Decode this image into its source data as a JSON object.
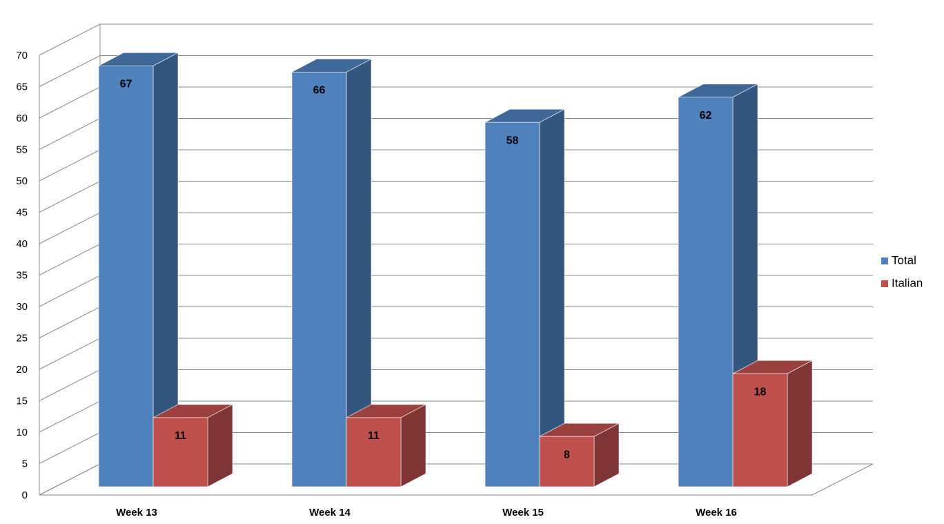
{
  "chart_data": {
    "type": "bar3d",
    "categories": [
      "Week 13",
      "Week 14",
      "Week 15",
      "Week 16"
    ],
    "series": [
      {
        "name": "Total",
        "color": "#4f81bd",
        "values": [
          67,
          66,
          58,
          62
        ]
      },
      {
        "name": "Italian",
        "color": "#c0504d",
        "values": [
          11,
          11,
          8,
          18
        ]
      }
    ],
    "ylim": [
      0,
      70
    ],
    "yticks": [
      0,
      5,
      10,
      15,
      20,
      25,
      30,
      35,
      40,
      45,
      50,
      55,
      60,
      65,
      70
    ],
    "grid": true,
    "legend": "right"
  }
}
